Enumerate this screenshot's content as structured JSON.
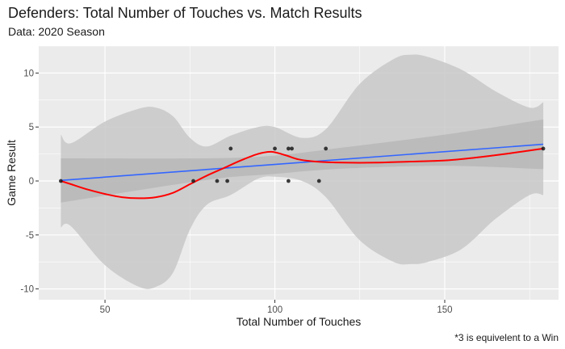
{
  "chart_data": {
    "type": "scatter",
    "title": "Defenders: Total Number of Touches vs. Match Results",
    "subtitle": "Data: 2020 Season",
    "caption": "*3 is equivelent to a Win",
    "xlabel": "Total Number of Touches",
    "ylabel": "Game Result",
    "xlim": [
      30.5,
      183.5
    ],
    "ylim": [
      -11,
      12.5
    ],
    "x_ticks": [
      50,
      100,
      150
    ],
    "y_ticks": [
      -10,
      -5,
      0,
      5,
      10
    ],
    "x_tick_labels": [
      "50",
      "100",
      "150"
    ],
    "y_tick_labels": [
      "-10",
      "-5",
      "0",
      "5",
      "10"
    ],
    "grid": true,
    "points": [
      {
        "x": 37,
        "y": 0
      },
      {
        "x": 76,
        "y": 0
      },
      {
        "x": 83,
        "y": 0
      },
      {
        "x": 86,
        "y": 0
      },
      {
        "x": 87,
        "y": 3
      },
      {
        "x": 100,
        "y": 3
      },
      {
        "x": 104,
        "y": 3
      },
      {
        "x": 104,
        "y": 0
      },
      {
        "x": 105,
        "y": 3
      },
      {
        "x": 113,
        "y": 0
      },
      {
        "x": 115,
        "y": 3
      },
      {
        "x": 179,
        "y": 3
      }
    ],
    "series": [
      {
        "method": "loess",
        "color": "#ff0000",
        "fit": [
          {
            "x": 37,
            "y": 0.0
          },
          {
            "x": 40,
            "y": -0.3
          },
          {
            "x": 45,
            "y": -0.8
          },
          {
            "x": 50,
            "y": -1.2
          },
          {
            "x": 55,
            "y": -1.5
          },
          {
            "x": 60,
            "y": -1.6
          },
          {
            "x": 65,
            "y": -1.5
          },
          {
            "x": 70,
            "y": -1.1
          },
          {
            "x": 75,
            "y": -0.3
          },
          {
            "x": 80,
            "y": 0.5
          },
          {
            "x": 85,
            "y": 1.2
          },
          {
            "x": 90,
            "y": 1.9
          },
          {
            "x": 95,
            "y": 2.5
          },
          {
            "x": 99,
            "y": 2.7
          },
          {
            "x": 103,
            "y": 2.4
          },
          {
            "x": 107,
            "y": 2.0
          },
          {
            "x": 112,
            "y": 1.8
          },
          {
            "x": 120,
            "y": 1.7
          },
          {
            "x": 130,
            "y": 1.7
          },
          {
            "x": 140,
            "y": 1.8
          },
          {
            "x": 150,
            "y": 1.9
          },
          {
            "x": 160,
            "y": 2.2
          },
          {
            "x": 170,
            "y": 2.6
          },
          {
            "x": 179,
            "y": 3.0
          }
        ],
        "band_upper": [
          {
            "x": 37,
            "y": 4.3
          },
          {
            "x": 40,
            "y": 3.5
          },
          {
            "x": 50,
            "y": 5.5
          },
          {
            "x": 60,
            "y": 6.7
          },
          {
            "x": 65,
            "y": 6.8
          },
          {
            "x": 70,
            "y": 6.0
          },
          {
            "x": 75,
            "y": 4.0
          },
          {
            "x": 80,
            "y": 3.2
          },
          {
            "x": 87,
            "y": 4.2
          },
          {
            "x": 95,
            "y": 5.0
          },
          {
            "x": 100,
            "y": 5.0
          },
          {
            "x": 108,
            "y": 4.0
          },
          {
            "x": 115,
            "y": 4.8
          },
          {
            "x": 125,
            "y": 9.0
          },
          {
            "x": 135,
            "y": 11.3
          },
          {
            "x": 140,
            "y": 11.7
          },
          {
            "x": 145,
            "y": 11.5
          },
          {
            "x": 155,
            "y": 10.3
          },
          {
            "x": 165,
            "y": 8.3
          },
          {
            "x": 175,
            "y": 6.8
          },
          {
            "x": 179,
            "y": 7.3
          }
        ],
        "band_lower": [
          {
            "x": 37,
            "y": -4.3
          },
          {
            "x": 40,
            "y": -4.2
          },
          {
            "x": 50,
            "y": -7.8
          },
          {
            "x": 60,
            "y": -9.8
          },
          {
            "x": 65,
            "y": -9.8
          },
          {
            "x": 70,
            "y": -8.5
          },
          {
            "x": 75,
            "y": -4.5
          },
          {
            "x": 80,
            "y": -2.2
          },
          {
            "x": 87,
            "y": -1.3
          },
          {
            "x": 95,
            "y": 0.2
          },
          {
            "x": 100,
            "y": 0.4
          },
          {
            "x": 108,
            "y": 0.0
          },
          {
            "x": 115,
            "y": -1.5
          },
          {
            "x": 125,
            "y": -5.5
          },
          {
            "x": 135,
            "y": -7.5
          },
          {
            "x": 140,
            "y": -7.7
          },
          {
            "x": 145,
            "y": -7.5
          },
          {
            "x": 155,
            "y": -6.3
          },
          {
            "x": 165,
            "y": -3.5
          },
          {
            "x": 175,
            "y": -1.3
          },
          {
            "x": 179,
            "y": -1.3
          }
        ]
      },
      {
        "method": "lm",
        "color": "#3366ff",
        "fit": [
          {
            "x": 37,
            "y": 0.05
          },
          {
            "x": 179,
            "y": 3.4
          }
        ],
        "band_upper": [
          {
            "x": 37,
            "y": 2.1
          },
          {
            "x": 80,
            "y": 2.1
          },
          {
            "x": 100,
            "y": 2.35
          },
          {
            "x": 120,
            "y": 3.1
          },
          {
            "x": 150,
            "y": 4.3
          },
          {
            "x": 179,
            "y": 5.7
          }
        ],
        "band_lower": [
          {
            "x": 37,
            "y": -2.0
          },
          {
            "x": 80,
            "y": 0.1
          },
          {
            "x": 100,
            "y": 0.65
          },
          {
            "x": 120,
            "y": 1.15
          },
          {
            "x": 150,
            "y": 1.4
          },
          {
            "x": 179,
            "y": 1.1
          }
        ]
      }
    ]
  },
  "colors": {
    "panel": "#ebebeb",
    "grid_major": "#ffffff",
    "point": "#1a1a1a",
    "band_loess": "#c8c8c8",
    "band_lm": "#b3b3b3"
  }
}
